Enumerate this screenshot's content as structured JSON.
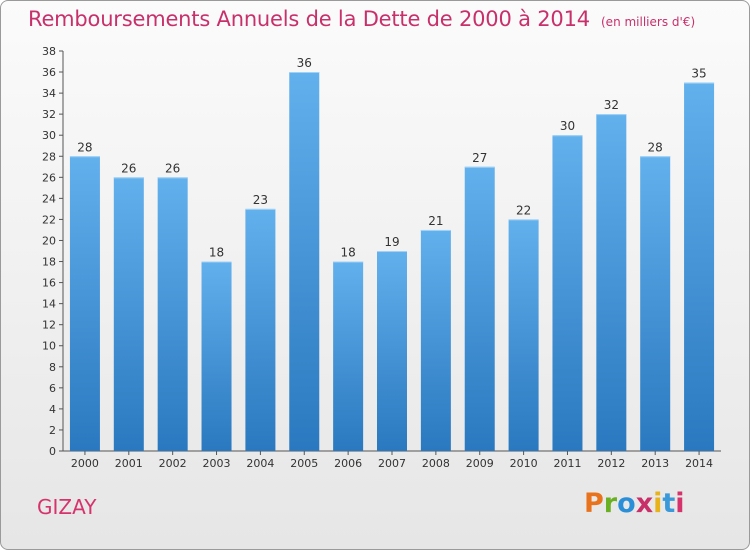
{
  "chart_data": {
    "type": "bar",
    "title": "Remboursements Annuels de la Dette de 2000 à 2014",
    "subtitle": "(en milliers d'€)",
    "categories": [
      "2000",
      "2001",
      "2002",
      "2003",
      "2004",
      "2005",
      "2006",
      "2007",
      "2008",
      "2009",
      "2010",
      "2011",
      "2012",
      "2013",
      "2014"
    ],
    "values": [
      28,
      26,
      26,
      18,
      23,
      36,
      18,
      19,
      21,
      27,
      22,
      30,
      32,
      28,
      35
    ],
    "ylim": [
      0,
      38
    ],
    "yticks": [
      0,
      2,
      4,
      6,
      8,
      10,
      12,
      14,
      16,
      18,
      20,
      22,
      24,
      26,
      28,
      30,
      32,
      34,
      36,
      38
    ],
    "grid": false,
    "bar_color": "#3d8fd6",
    "xlabel": "",
    "ylabel": ""
  },
  "footer": {
    "commune": "GIZAY",
    "logo_text": "Proxiti",
    "logo_colors": [
      "#e8731c",
      "#6ab023",
      "#2b8fd8",
      "#c8306a",
      "#e8b21c",
      "#3a9ad9",
      "#d6336c"
    ]
  }
}
